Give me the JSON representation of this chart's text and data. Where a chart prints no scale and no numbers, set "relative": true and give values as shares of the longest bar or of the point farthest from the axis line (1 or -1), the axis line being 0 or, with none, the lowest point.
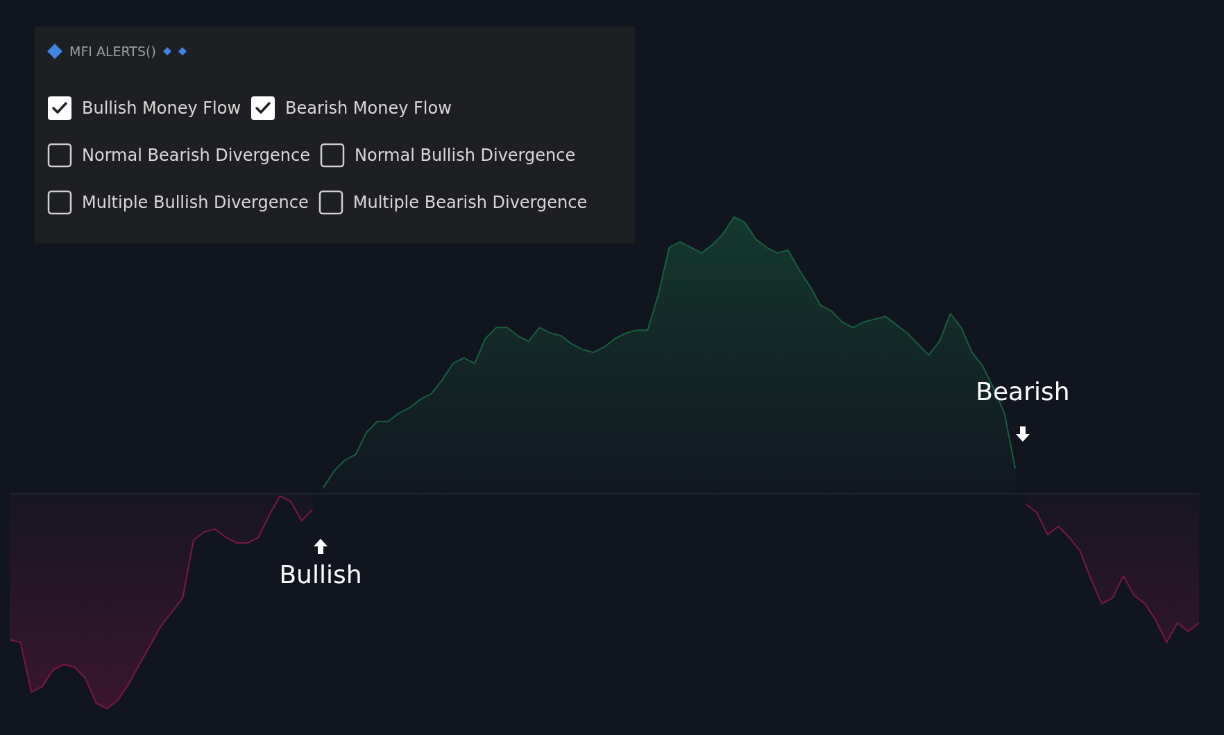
{
  "chart_data": {
    "type": "area",
    "relative": true,
    "marker": "none",
    "title": "MFI ALERTS()",
    "annotations": [
      "Bullish Money Flow",
      "Bearish Money Flow",
      "Normal Bearish Divergence",
      "Normal Bullish Divergence",
      "Multiple Bullish Divergence",
      "Multiple Bearish Divergence",
      "Bullish",
      "Bearish"
    ],
    "ref_lines": [
      {
        "axis": "y",
        "value": 0,
        "color": "#1f2c3c"
      }
    ],
    "categories": [
      null,
      null,
      null,
      null,
      null,
      null,
      null,
      null,
      null,
      null,
      null,
      null,
      null,
      null,
      null,
      null,
      null,
      null,
      null,
      null,
      null,
      null,
      null,
      null,
      null,
      null,
      null,
      null,
      null,
      null,
      null,
      null,
      null,
      null,
      null,
      null,
      null,
      null,
      null,
      null,
      null,
      null,
      null,
      null,
      null,
      null,
      null,
      null,
      null,
      null,
      null,
      null,
      null,
      null,
      null,
      null,
      null,
      null,
      null,
      null,
      null,
      null,
      null,
      null,
      null,
      null,
      null,
      null,
      null,
      null,
      null,
      null,
      null,
      null,
      null,
      null,
      null,
      null,
      null,
      null,
      null,
      null,
      null,
      null,
      null,
      null,
      null,
      null,
      null,
      null,
      null,
      null,
      null,
      null,
      null,
      null,
      null,
      null,
      null,
      null,
      null,
      null,
      null,
      null,
      null,
      null,
      null,
      null,
      null,
      null,
      null
    ],
    "series": [
      {
        "color": "#17603e",
        "values": [
          null,
          null,
          null,
          null,
          null,
          null,
          null,
          null,
          null,
          null,
          null,
          null,
          null,
          null,
          null,
          null,
          null,
          null,
          null,
          null,
          null,
          null,
          null,
          null,
          null,
          null,
          null,
          null,
          null,
          0.02,
          0.08,
          0.12,
          0.14,
          0.22,
          0.26,
          0.26,
          0.29,
          0.31,
          0.34,
          0.36,
          0.41,
          0.47,
          0.49,
          0.47,
          0.56,
          0.6,
          0.6,
          0.57,
          0.55,
          0.6,
          0.58,
          0.57,
          0.54,
          0.52,
          0.51,
          0.53,
          0.56,
          0.58,
          0.59,
          0.59,
          0.72,
          0.89,
          0.91,
          0.89,
          0.87,
          0.9,
          0.94,
          1,
          0.98,
          0.92,
          0.89,
          0.87,
          0.88,
          0.81,
          0.75,
          0.68,
          0.66,
          0.62,
          0.6,
          0.62,
          0.63,
          0.64,
          0.61,
          0.58,
          0.54,
          0.5,
          0.55,
          0.65,
          0.6,
          0.51,
          0.46,
          0.38,
          0.29,
          0.09,
          null,
          null,
          null,
          null,
          null,
          null,
          null,
          null,
          null,
          null,
          null,
          null,
          null,
          null,
          null,
          null,
          null
        ]
      },
      {
        "color": "#7c1846",
        "values": [
          -0.53,
          -0.54,
          -0.72,
          -0.7,
          -0.64,
          -0.62,
          -0.63,
          -0.67,
          -0.76,
          -0.78,
          -0.75,
          -0.69,
          -0.62,
          -0.55,
          -0.48,
          -0.43,
          -0.38,
          -0.17,
          -0.14,
          -0.13,
          -0.16,
          -0.18,
          -0.18,
          -0.16,
          -0.08,
          -0.01,
          -0.03,
          -0.1,
          -0.06,
          null,
          null,
          null,
          null,
          null,
          null,
          null,
          null,
          null,
          null,
          null,
          null,
          null,
          null,
          null,
          null,
          null,
          null,
          null,
          null,
          null,
          null,
          null,
          null,
          null,
          null,
          null,
          null,
          null,
          null,
          null,
          null,
          null,
          null,
          null,
          null,
          null,
          null,
          null,
          null,
          null,
          null,
          null,
          null,
          null,
          null,
          null,
          null,
          null,
          null,
          null,
          null,
          null,
          null,
          null,
          null,
          null,
          null,
          null,
          null,
          null,
          null,
          null,
          null,
          null,
          -0.04,
          -0.07,
          -0.15,
          -0.12,
          -0.16,
          -0.21,
          -0.31,
          -0.4,
          -0.38,
          -0.3,
          -0.37,
          -0.4,
          -0.46,
          -0.54,
          -0.47,
          -0.5,
          -0.47
        ]
      }
    ]
  }
}
